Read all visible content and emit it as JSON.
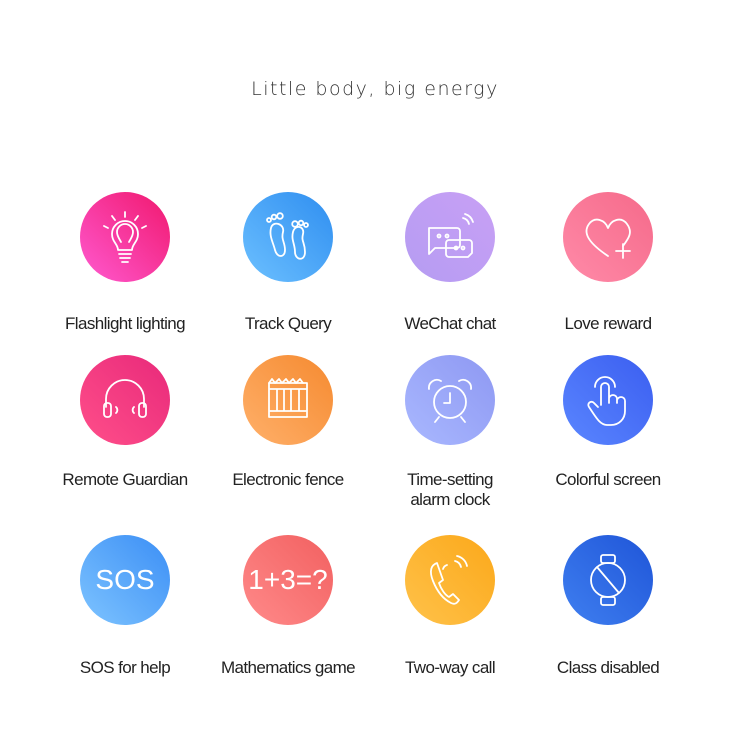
{
  "title": "Little body, big energy",
  "features": [
    {
      "label": "Flashlight lighting",
      "icon": "lightbulb-icon",
      "colors": [
        "#ff5ad0",
        "#f0186e"
      ]
    },
    {
      "label": "Track Query",
      "icon": "footprints-icon",
      "colors": [
        "#6cc0ff",
        "#2f8ef0"
      ]
    },
    {
      "label": "WeChat chat",
      "icon": "chat-bubbles-icon",
      "colors": [
        "#b59cf2",
        "#c8a0f5"
      ]
    },
    {
      "label": "Love reward",
      "icon": "heart-plus-icon",
      "colors": [
        "#ff8aa8",
        "#f56a8a"
      ]
    },
    {
      "label": "Remote Guardian",
      "icon": "headphones-icon",
      "colors": [
        "#ff4f8a",
        "#e8297a"
      ]
    },
    {
      "label": "Electronic fence",
      "icon": "fence-icon",
      "colors": [
        "#ffb06a",
        "#f58a30"
      ]
    },
    {
      "label": "Time-setting alarm clock",
      "icon": "alarm-clock-icon",
      "colors": [
        "#a9b8ff",
        "#8e98f2"
      ]
    },
    {
      "label": "Colorful screen",
      "icon": "touch-hand-icon",
      "colors": [
        "#5a86ff",
        "#3b5ef0"
      ]
    },
    {
      "label": "SOS for help",
      "icon": "sos-icon",
      "text": "SOS",
      "colors": [
        "#7ec4ff",
        "#3b8ef5"
      ]
    },
    {
      "label": "Mathematics game",
      "icon": "math-icon",
      "text": "1+3=?",
      "colors": [
        "#ff8a8a",
        "#f26060"
      ]
    },
    {
      "label": "Two-way call",
      "icon": "phone-call-icon",
      "colors": [
        "#ffc24a",
        "#fba81a"
      ]
    },
    {
      "label": "Class disabled",
      "icon": "watch-disabled-icon",
      "colors": [
        "#3f7ff0",
        "#1f55d8"
      ]
    }
  ]
}
